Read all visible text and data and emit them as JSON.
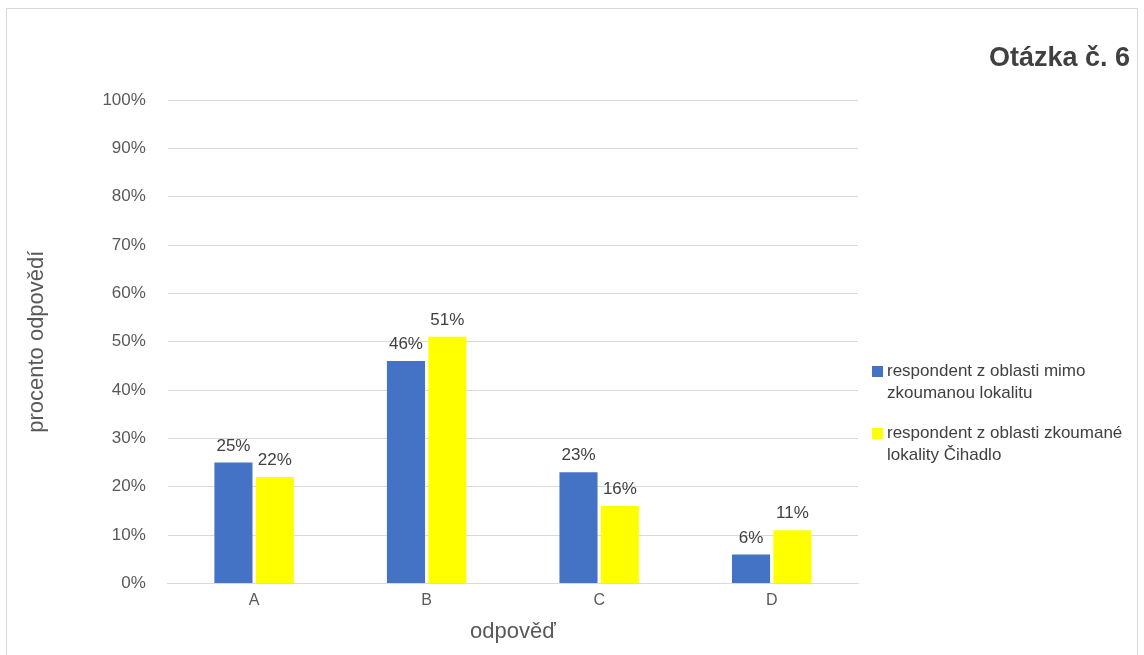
{
  "chart_data": {
    "type": "bar",
    "title": "Otázka č. 6",
    "xlabel": "odpověď",
    "ylabel": "procento odpovědí",
    "categories": [
      "A",
      "B",
      "C",
      "D"
    ],
    "series": [
      {
        "name": "respondent z oblasti mimo zkoumanou lokalitu",
        "color": "#4472c4",
        "values": [
          25,
          46,
          23,
          6
        ],
        "value_labels": [
          "25%",
          "46%",
          "23%",
          "6%"
        ]
      },
      {
        "name": "respondent z oblasti zkoumané lokality Čihadlo",
        "color": "#ffff00",
        "values": [
          22,
          51,
          16,
          11
        ],
        "value_labels": [
          "22%",
          "51%",
          "16%",
          "11%"
        ]
      }
    ],
    "ylim": [
      0,
      100
    ],
    "yticks": [
      {
        "value": 0,
        "label": "0%"
      },
      {
        "value": 10,
        "label": "10%"
      },
      {
        "value": 20,
        "label": "20%"
      },
      {
        "value": 30,
        "label": "30%"
      },
      {
        "value": 40,
        "label": "40%"
      },
      {
        "value": 50,
        "label": "50%"
      },
      {
        "value": 60,
        "label": "60%"
      },
      {
        "value": 70,
        "label": "70%"
      },
      {
        "value": 80,
        "label": "80%"
      },
      {
        "value": 90,
        "label": "90%"
      },
      {
        "value": 100,
        "label": "100%"
      }
    ],
    "grid": "y",
    "legend": "right"
  }
}
